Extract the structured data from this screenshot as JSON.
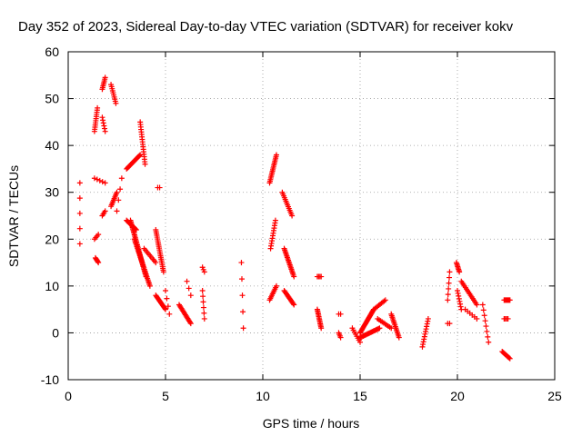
{
  "chart_data": {
    "type": "scatter",
    "title": "Day 352 of 2023, Sidereal Day-to-day VTEC variation (SDTVAR) for receiver kokv",
    "xlabel": "GPS time / hours",
    "ylabel": "SDTVAR / TECUs",
    "xlim": [
      0,
      25
    ],
    "ylim": [
      -10,
      60
    ],
    "xticks": [
      0,
      5,
      10,
      15,
      20,
      25
    ],
    "yticks": [
      -10,
      0,
      10,
      20,
      30,
      40,
      50,
      60
    ],
    "xtick_labels": [
      "0",
      "5",
      "10",
      "15",
      "20",
      "25"
    ],
    "ytick_labels": [
      "-10",
      "0",
      "10",
      "20",
      "30",
      "40",
      "50",
      "60"
    ],
    "grid": true,
    "marker": "+",
    "color": "#ff0000",
    "segments": [
      {
        "name": "arc-01",
        "x0": 0.6,
        "x1": 0.6,
        "y0": 32,
        "y1": 19,
        "n": 5
      },
      {
        "name": "arc-02",
        "x0": 1.35,
        "x1": 1.5,
        "y0": 43,
        "y1": 48,
        "n": 12
      },
      {
        "name": "arc-03",
        "x0": 1.35,
        "x1": 1.55,
        "y0": 20,
        "y1": 21,
        "n": 4
      },
      {
        "name": "arc-04",
        "x0": 1.4,
        "x1": 1.55,
        "y0": 16,
        "y1": 15,
        "n": 6
      },
      {
        "name": "arc-05",
        "x0": 1.35,
        "x1": 1.9,
        "y0": 33,
        "y1": 32,
        "n": 5
      },
      {
        "name": "arc-06",
        "x0": 1.75,
        "x1": 1.9,
        "y0": 52,
        "y1": 54.5,
        "n": 8
      },
      {
        "name": "arc-07",
        "x0": 1.75,
        "x1": 1.9,
        "y0": 46,
        "y1": 43,
        "n": 6
      },
      {
        "name": "arc-08",
        "x0": 1.75,
        "x1": 1.9,
        "y0": 25,
        "y1": 26,
        "n": 4
      },
      {
        "name": "arc-09",
        "x0": 2.2,
        "x1": 2.45,
        "y0": 53,
        "y1": 49,
        "n": 10
      },
      {
        "name": "arc-10",
        "x0": 2.2,
        "x1": 2.5,
        "y0": 27,
        "y1": 30,
        "n": 10
      },
      {
        "name": "arc-11",
        "x0": 2.5,
        "x1": 2.75,
        "y0": 26,
        "y1": 33,
        "n": 4
      },
      {
        "name": "arc-12",
        "x0": 3.0,
        "x1": 3.7,
        "y0": 35,
        "y1": 38,
        "n": 18
      },
      {
        "name": "arc-13",
        "x0": 3.7,
        "x1": 3.95,
        "y0": 45,
        "y1": 36,
        "n": 18
      },
      {
        "name": "arc-14",
        "x0": 3.0,
        "x1": 3.5,
        "y0": 24,
        "y1": 22,
        "n": 12
      },
      {
        "name": "arc-15",
        "x0": 3.2,
        "x1": 4.0,
        "y0": 24,
        "y1": 12,
        "n": 40
      },
      {
        "name": "arc-16",
        "x0": 3.4,
        "x1": 4.2,
        "y0": 20,
        "y1": 10,
        "n": 32
      },
      {
        "name": "arc-17",
        "x0": 3.9,
        "x1": 4.5,
        "y0": 18,
        "y1": 15,
        "n": 10
      },
      {
        "name": "arc-18",
        "x0": 4.5,
        "x1": 4.9,
        "y0": 22,
        "y1": 13,
        "n": 24
      },
      {
        "name": "arc-19",
        "x0": 4.6,
        "x1": 4.7,
        "y0": 31,
        "y1": 31,
        "n": 2
      },
      {
        "name": "arc-20",
        "x0": 4.5,
        "x1": 5.0,
        "y0": 8,
        "y1": 5,
        "n": 16
      },
      {
        "name": "arc-21",
        "x0": 5.0,
        "x1": 5.2,
        "y0": 9,
        "y1": 4,
        "n": 4
      },
      {
        "name": "arc-22",
        "x0": 5.7,
        "x1": 6.3,
        "y0": 6,
        "y1": 2,
        "n": 16
      },
      {
        "name": "arc-23",
        "x0": 6.1,
        "x1": 6.3,
        "y0": 11,
        "y1": 8,
        "n": 3
      },
      {
        "name": "arc-24",
        "x0": 6.9,
        "x1": 7.0,
        "y0": 9,
        "y1": 3,
        "n": 6
      },
      {
        "name": "arc-25",
        "x0": 6.9,
        "x1": 7.0,
        "y0": 14,
        "y1": 13,
        "n": 3
      },
      {
        "name": "arc-26",
        "x0": 8.9,
        "x1": 9.0,
        "y0": 15,
        "y1": 1,
        "n": 5
      },
      {
        "name": "arc-27",
        "x0": 10.35,
        "x1": 10.7,
        "y0": 32,
        "y1": 38,
        "n": 18
      },
      {
        "name": "arc-28",
        "x0": 10.4,
        "x1": 10.65,
        "y0": 18,
        "y1": 24,
        "n": 12
      },
      {
        "name": "arc-29",
        "x0": 10.35,
        "x1": 10.7,
        "y0": 7,
        "y1": 10,
        "n": 10
      },
      {
        "name": "arc-30",
        "x0": 11.0,
        "x1": 11.5,
        "y0": 30,
        "y1": 25,
        "n": 14
      },
      {
        "name": "arc-31",
        "x0": 11.1,
        "x1": 11.6,
        "y0": 18,
        "y1": 12,
        "n": 20
      },
      {
        "name": "arc-32",
        "x0": 11.1,
        "x1": 11.6,
        "y0": 9,
        "y1": 6,
        "n": 14
      },
      {
        "name": "arc-33",
        "x0": 12.8,
        "x1": 13.0,
        "y0": 5,
        "y1": 1,
        "n": 14
      },
      {
        "name": "arc-34",
        "x0": 12.8,
        "x1": 13.0,
        "y0": 12,
        "y1": 12,
        "n": 4
      },
      {
        "name": "arc-35",
        "x0": 13.9,
        "x1": 14.0,
        "y0": 0,
        "y1": -1,
        "n": 4
      },
      {
        "name": "arc-36",
        "x0": 13.9,
        "x1": 14.0,
        "y0": 4,
        "y1": 4,
        "n": 2
      },
      {
        "name": "arc-37",
        "x0": 14.6,
        "x1": 15.0,
        "y0": 1,
        "y1": -2,
        "n": 8
      },
      {
        "name": "arc-38",
        "x0": 15.0,
        "x1": 16.0,
        "y0": -1,
        "y1": 1,
        "n": 20
      },
      {
        "name": "arc-39",
        "x0": 15.0,
        "x1": 15.7,
        "y0": 0,
        "y1": 5,
        "n": 24
      },
      {
        "name": "arc-40",
        "x0": 15.7,
        "x1": 16.3,
        "y0": 5,
        "y1": 7,
        "n": 10
      },
      {
        "name": "arc-41",
        "x0": 15.9,
        "x1": 16.6,
        "y0": 3,
        "y1": 1,
        "n": 10
      },
      {
        "name": "arc-42",
        "x0": 16.6,
        "x1": 17.0,
        "y0": 4,
        "y1": -1,
        "n": 16
      },
      {
        "name": "arc-43",
        "x0": 18.2,
        "x1": 18.5,
        "y0": -3,
        "y1": 3,
        "n": 12
      },
      {
        "name": "arc-44",
        "x0": 19.5,
        "x1": 19.6,
        "y0": 7,
        "y1": 13,
        "n": 6
      },
      {
        "name": "arc-45",
        "x0": 19.5,
        "x1": 19.6,
        "y0": 2,
        "y1": 2,
        "n": 2
      },
      {
        "name": "arc-46",
        "x0": 19.95,
        "x1": 20.1,
        "y0": 15,
        "y1": 13,
        "n": 8
      },
      {
        "name": "arc-47",
        "x0": 20.0,
        "x1": 20.2,
        "y0": 9,
        "y1": 5,
        "n": 8
      },
      {
        "name": "arc-48",
        "x0": 20.2,
        "x1": 21.0,
        "y0": 11,
        "y1": 6,
        "n": 16
      },
      {
        "name": "arc-49",
        "x0": 20.4,
        "x1": 21.0,
        "y0": 5,
        "y1": 3,
        "n": 6
      },
      {
        "name": "arc-50",
        "x0": 21.3,
        "x1": 21.6,
        "y0": 6,
        "y1": -2,
        "n": 8
      },
      {
        "name": "arc-51",
        "x0": 22.4,
        "x1": 22.7,
        "y0": 7,
        "y1": 7,
        "n": 8
      },
      {
        "name": "arc-52",
        "x0": 22.4,
        "x1": 22.6,
        "y0": 3,
        "y1": 3,
        "n": 4
      },
      {
        "name": "arc-53",
        "x0": 22.3,
        "x1": 22.7,
        "y0": -4,
        "y1": -5.5,
        "n": 10
      }
    ]
  }
}
